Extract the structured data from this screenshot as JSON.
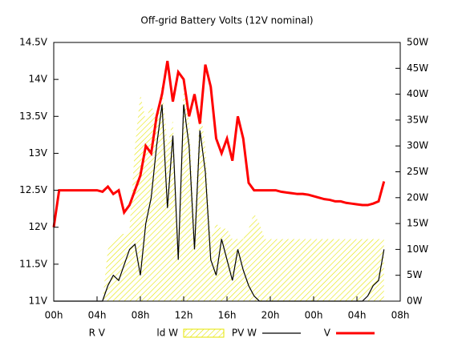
{
  "chart_data": {
    "type": "line",
    "title": "Off-grid Battery Volts (12V nominal)",
    "x": [
      0,
      0.5,
      1,
      1.5,
      2,
      2.5,
      3,
      3.5,
      4,
      4.5,
      5,
      5.5,
      6,
      6.5,
      7,
      7.5,
      8,
      8.5,
      9,
      9.5,
      10,
      10.5,
      11,
      11.5,
      12,
      12.5,
      13,
      13.5,
      14,
      14.5,
      15,
      15.5,
      16,
      16.5,
      17,
      17.5,
      18,
      18.5,
      19,
      19.5,
      20,
      20.5,
      21,
      21.5,
      22,
      22.5,
      23,
      23.5,
      24,
      24.5,
      25,
      25.5,
      26,
      26.5,
      27,
      27.5,
      28,
      28.5,
      29,
      29.5,
      30,
      30.5
    ],
    "xlim": [
      0,
      32
    ],
    "xticks": [
      {
        "value": 0,
        "label": "00h"
      },
      {
        "value": 4,
        "label": "04h"
      },
      {
        "value": 8,
        "label": "08h"
      },
      {
        "value": 12,
        "label": "12h"
      },
      {
        "value": 16,
        "label": "16h"
      },
      {
        "value": 20,
        "label": "20h"
      },
      {
        "value": 24,
        "label": "00h"
      },
      {
        "value": 28,
        "label": "04h"
      },
      {
        "value": 32,
        "label": "08h"
      }
    ],
    "ylim": [
      11,
      14.5
    ],
    "yticks": [
      {
        "value": 11,
        "label": "11V"
      },
      {
        "value": 11.5,
        "label": "11.5V"
      },
      {
        "value": 12,
        "label": "12V"
      },
      {
        "value": 12.5,
        "label": "12.5V"
      },
      {
        "value": 13,
        "label": "13V"
      },
      {
        "value": 13.5,
        "label": "13.5V"
      },
      {
        "value": 14,
        "label": "14V"
      },
      {
        "value": 14.5,
        "label": "14.5V"
      }
    ],
    "y2lim": [
      0,
      50
    ],
    "y2ticks": [
      {
        "value": 0,
        "label": "0W"
      },
      {
        "value": 5,
        "label": "5W"
      },
      {
        "value": 10,
        "label": "10W"
      },
      {
        "value": 15,
        "label": "15W"
      },
      {
        "value": 20,
        "label": "20W"
      },
      {
        "value": 25,
        "label": "25W"
      },
      {
        "value": 30,
        "label": "30W"
      },
      {
        "value": 35,
        "label": "35W"
      },
      {
        "value": 40,
        "label": "40W"
      },
      {
        "value": 45,
        "label": "45W"
      },
      {
        "value": 50,
        "label": "50W"
      }
    ],
    "series": [
      {
        "name": "R V",
        "style": "line",
        "color": "#0000ff",
        "values": [
          null,
          null,
          null,
          null,
          null,
          null,
          null,
          null,
          null,
          null,
          null,
          null,
          null,
          null,
          null,
          null,
          null,
          null,
          null,
          null,
          null,
          null,
          null,
          null,
          null,
          null,
          null,
          null,
          null,
          null,
          null,
          null,
          null,
          null,
          null,
          null,
          null,
          null,
          null,
          null,
          null,
          null,
          null,
          null,
          null,
          null,
          null,
          null,
          null,
          null,
          null,
          null,
          null,
          null,
          null,
          null,
          null,
          null,
          null,
          null,
          null,
          null
        ]
      },
      {
        "name": "ld W",
        "style": "area",
        "axis": "y2",
        "color": "#e6e600",
        "values": [
          0,
          0,
          0,
          0,
          0,
          0,
          0,
          0,
          0,
          0,
          10,
          12,
          13,
          13,
          14,
          30,
          40,
          35,
          38,
          35,
          42,
          30,
          35,
          12,
          42,
          35,
          15,
          38,
          30,
          12,
          15,
          14,
          14,
          12,
          12,
          12,
          14,
          17,
          15,
          12,
          12,
          12,
          12,
          12,
          12,
          12,
          12,
          12,
          12,
          12,
          12,
          12,
          12,
          12,
          12,
          12,
          12,
          12,
          12,
          12,
          12,
          12
        ]
      },
      {
        "name": "PV W",
        "style": "line",
        "axis": "y2",
        "color": "#000000",
        "values": [
          0,
          0,
          0,
          0,
          0,
          0,
          0,
          0,
          0,
          0,
          3,
          5,
          4,
          7,
          10,
          11,
          5,
          15,
          20,
          30,
          38,
          18,
          32,
          8,
          38,
          30,
          10,
          33,
          25,
          8,
          5,
          12,
          8,
          4,
          10,
          6,
          3,
          1,
          0,
          0,
          0,
          0,
          0,
          0,
          0,
          0,
          0,
          0,
          0,
          0,
          0,
          0,
          0,
          0,
          0,
          0,
          0,
          0,
          1,
          3,
          4,
          10
        ]
      },
      {
        "name": "V",
        "style": "line",
        "color": "#ff0000",
        "values": [
          12.0,
          12.5,
          12.5,
          12.5,
          12.5,
          12.5,
          12.5,
          12.5,
          12.5,
          12.48,
          12.55,
          12.45,
          12.5,
          12.2,
          12.3,
          12.5,
          12.7,
          13.1,
          13.0,
          13.5,
          13.8,
          14.25,
          13.7,
          14.1,
          14.0,
          13.5,
          13.8,
          13.4,
          14.2,
          13.9,
          13.2,
          13.0,
          13.2,
          12.9,
          13.5,
          13.2,
          12.6,
          12.5,
          12.5,
          12.5,
          12.5,
          12.5,
          12.48,
          12.47,
          12.46,
          12.45,
          12.45,
          12.44,
          12.42,
          12.4,
          12.38,
          12.37,
          12.35,
          12.35,
          12.33,
          12.32,
          12.31,
          12.3,
          12.3,
          12.32,
          12.35,
          12.62
        ]
      }
    ]
  }
}
